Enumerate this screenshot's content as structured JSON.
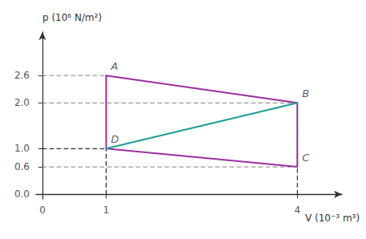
{
  "chart_data": {
    "type": "line",
    "xlabel": "V (10⁻³ m³)",
    "ylabel": "p (10⁶ N/m²)",
    "xlim": [
      -0.1,
      4.7
    ],
    "ylim": [
      -0.1,
      3.55
    ],
    "xticks": [
      0,
      1.0,
      4.0
    ],
    "yticks": [
      {
        "value": 0,
        "label": "0.0"
      },
      0.6,
      {
        "value": 1.0,
        "label": "1.0"
      },
      {
        "value": 2.0,
        "label": "2.0"
      },
      2.6
    ],
    "grid": false,
    "series": [
      {
        "x": [
          0,
          1.0
        ],
        "values": [
          2.6,
          2.6
        ],
        "color": "gray",
        "line_style": "dashed"
      },
      {
        "x": [
          0,
          4.0
        ],
        "values": [
          2.0,
          2.0
        ],
        "color": "gray",
        "line_style": "dashed"
      },
      {
        "x": [
          0,
          4.0
        ],
        "values": [
          0.6,
          0.6
        ],
        "color": "gray",
        "line_style": "dashed"
      },
      {
        "x": [
          1.0,
          1.0
        ],
        "values": [
          0,
          2.6
        ],
        "color": "black",
        "line_style": "dashed"
      },
      {
        "x": [
          4.0,
          4.0
        ],
        "values": [
          0,
          2.0
        ],
        "color": "black",
        "line_style": "dashed"
      },
      {
        "x": [
          0,
          1.0
        ],
        "values": [
          1.0,
          1.0
        ],
        "color": "black",
        "line_style": "dashed"
      },
      {
        "x": [
          1.0,
          4.0,
          4.0,
          1.0,
          1.0
        ],
        "values": [
          2.6,
          2.0,
          0.6,
          1.0,
          2.6
        ],
        "color": "#9b30a0",
        "line_style": "solid"
      },
      {
        "x": [
          1.0,
          4.0
        ],
        "values": [
          1.0,
          2.0
        ],
        "color": "#1a9e96",
        "line_style": "solid"
      }
    ],
    "annotations": [
      {
        "text": "A",
        "x": 1.0,
        "y": 2.6
      },
      {
        "text": "B",
        "x": 4.0,
        "y": 2.0
      },
      {
        "text": "C",
        "x": 4.0,
        "y": 0.6
      },
      {
        "text": "D",
        "x": 1.0,
        "y": 1.0
      }
    ]
  }
}
